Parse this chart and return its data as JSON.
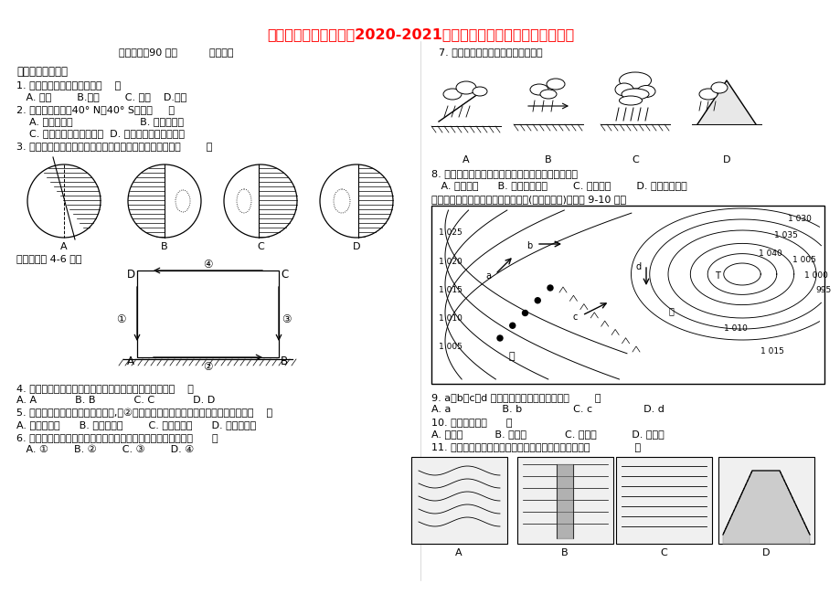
{
  "title": "江西省上饶市横峰中学2020-2021学年高一地理下学期入学考试试题",
  "title_color": "#FF0000",
  "title_fontsize": 11.5,
  "bg_color": "#FFFFFF",
  "header_left": "考试时间：90 分钟          命题人：",
  "section1": "一、单项选择题。",
  "q1": "1. 下列天体中体积最大的是（    ）",
  "q1_opts": "   A. 太阳        B.月球        C. 木星    D.地球",
  "q2": "2. 关于地球自转，40° N与40° S比较（     ）",
  "q2_optAB": "    A. 角速度不同                     B. 线速度不同",
  "q2_optCD": "    C. 角速度和线速度都不同  D. 角速度和线速度都相同",
  "q3": "3. 下图中四幅地球光照图中能正确表示北半球夏至日的是（        ）",
  "q3_note": "读图，回答 4-6 题。",
  "q4": "4. 如果此图为热力环流侧视图，则四地中温度最高的是（    ）",
  "q4_opts": "A. A            B. B            C. C            D. D",
  "q5": "5. 如果此图是城市热岛环流侧视图,在②处进行植树造林，对城市空气起到的作用是（    ）",
  "q5_opts": "A. 增温和增湿      B. 净化和增温        C. 净化和增湿      D. 减湿和减温",
  "q6": "6. 若如图表示海陆间水循环的模式图，目前人类影响最大的是（      ）",
  "q6_opts": "   A. ①        B. ②        C. ③        D. ④",
  "q7_text": "7. 下图中，表示了冷锋降水天气的是",
  "q8": "8. 对西欧温带海洋性气候的形成有巨大作用的洋流是",
  "q8_opts": "   A. 西风漂流      B. 墨西哥湾暖流        C. 日本暖流        D. 北大西洋暖流",
  "q9_intro": "读下面北半球某区域海平面等压线图(单位：百帕)，完成 9-10 题。",
  "q9": "9. a、b、c、d 四箭头表示风向，正确的是（        ）",
  "q9_opts": "A. a                B. b                C. c                D. d",
  "q10": "10. 甲地比乙地（      ）",
  "q10_opts": "A. 气压高          B. 风力大            C. 气温高           D. 湿度大",
  "q11": "11. 下列地质地貌示意图中，主要由外力作用形成的是（              ）"
}
